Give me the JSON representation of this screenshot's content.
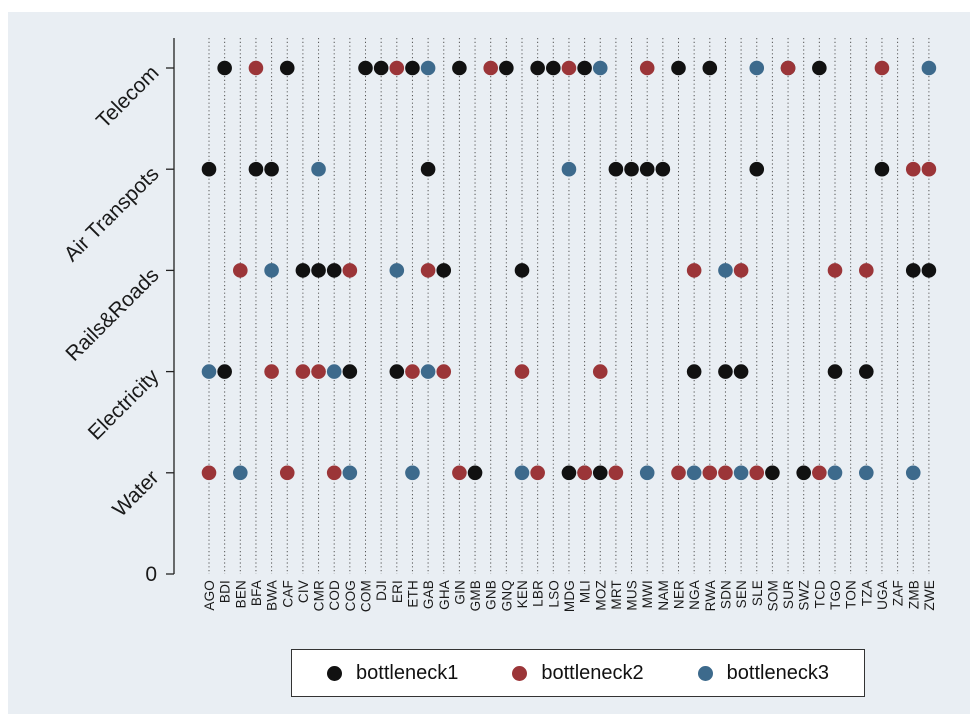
{
  "chart_data": {
    "type": "scatter",
    "title": "",
    "xlabel": "",
    "ylabel": "",
    "y_zero_label": "0",
    "y_categories": [
      "Water",
      "Electricity",
      "Rails&Roads",
      "Air Transpots",
      "Telecom"
    ],
    "x_categories": [
      "AGO",
      "BDI",
      "BEN",
      "BFA",
      "BWA",
      "CAF",
      "CIV",
      "CMR",
      "COD",
      "COG",
      "COM",
      "DJI",
      "ERI",
      "ETH",
      "GAB",
      "GHA",
      "GIN",
      "GMB",
      "GNB",
      "GNQ",
      "KEN",
      "LBR",
      "LSO",
      "MDG",
      "MLI",
      "MOZ",
      "MRT",
      "MUS",
      "MWI",
      "NAM",
      "NER",
      "NGA",
      "RWA",
      "SDN",
      "SEN",
      "SLE",
      "SOM",
      "SUR",
      "SWZ",
      "TCD",
      "TGO",
      "TON",
      "TZA",
      "UGA",
      "ZAF",
      "ZMB",
      "ZWE"
    ],
    "grid": "vertical dotted lines",
    "legend_position": "bottom",
    "series": [
      {
        "name": "bottleneck1",
        "color": "#111111",
        "points": [
          [
            "BDI",
            "Telecom"
          ],
          [
            "CAF",
            "Telecom"
          ],
          [
            "COM",
            "Telecom"
          ],
          [
            "DJI",
            "Telecom"
          ],
          [
            "ETH",
            "Telecom"
          ],
          [
            "GIN",
            "Telecom"
          ],
          [
            "GNQ",
            "Telecom"
          ],
          [
            "LBR",
            "Telecom"
          ],
          [
            "LSO",
            "Telecom"
          ],
          [
            "MLI",
            "Telecom"
          ],
          [
            "NER",
            "Telecom"
          ],
          [
            "RWA",
            "Telecom"
          ],
          [
            "SUR",
            "Telecom"
          ],
          [
            "TCD",
            "Telecom"
          ],
          [
            "AGO",
            "Air Transpots"
          ],
          [
            "BFA",
            "Air Transpots"
          ],
          [
            "BWA",
            "Air Transpots"
          ],
          [
            "GAB",
            "Air Transpots"
          ],
          [
            "MRT",
            "Air Transpots"
          ],
          [
            "MUS",
            "Air Transpots"
          ],
          [
            "MWI",
            "Air Transpots"
          ],
          [
            "NAM",
            "Air Transpots"
          ],
          [
            "SLE",
            "Air Transpots"
          ],
          [
            "UGA",
            "Air Transpots"
          ],
          [
            "CIV",
            "Rails&Roads"
          ],
          [
            "CMR",
            "Rails&Roads"
          ],
          [
            "COD",
            "Rails&Roads"
          ],
          [
            "GHA",
            "Rails&Roads"
          ],
          [
            "KEN",
            "Rails&Roads"
          ],
          [
            "ZMB",
            "Rails&Roads"
          ],
          [
            "ZWE",
            "Rails&Roads"
          ],
          [
            "BDI",
            "Electricity"
          ],
          [
            "COG",
            "Electricity"
          ],
          [
            "ERI",
            "Electricity"
          ],
          [
            "NGA",
            "Electricity"
          ],
          [
            "SDN",
            "Electricity"
          ],
          [
            "SEN",
            "Electricity"
          ],
          [
            "TGO",
            "Electricity"
          ],
          [
            "TZA",
            "Electricity"
          ],
          [
            "GMB",
            "Water"
          ],
          [
            "MDG",
            "Water"
          ],
          [
            "MLI",
            "Water"
          ],
          [
            "MOZ",
            "Water"
          ],
          [
            "SOM",
            "Water"
          ],
          [
            "SWZ",
            "Water"
          ]
        ]
      },
      {
        "name": "bottleneck2",
        "color": "#9b3538",
        "points": [
          [
            "BFA",
            "Telecom"
          ],
          [
            "ERI",
            "Telecom"
          ],
          [
            "GNB",
            "Telecom"
          ],
          [
            "MDG",
            "Telecom"
          ],
          [
            "MWI",
            "Telecom"
          ],
          [
            "SUR",
            "Telecom"
          ],
          [
            "UGA",
            "Telecom"
          ],
          [
            "ZMB",
            "Air Transpots"
          ],
          [
            "ZWE",
            "Air Transpots"
          ],
          [
            "BEN",
            "Rails&Roads"
          ],
          [
            "COG",
            "Rails&Roads"
          ],
          [
            "GAB",
            "Rails&Roads"
          ],
          [
            "NGA",
            "Rails&Roads"
          ],
          [
            "SEN",
            "Rails&Roads"
          ],
          [
            "TGO",
            "Rails&Roads"
          ],
          [
            "TZA",
            "Rails&Roads"
          ],
          [
            "BWA",
            "Electricity"
          ],
          [
            "CIV",
            "Electricity"
          ],
          [
            "CMR",
            "Electricity"
          ],
          [
            "ETH",
            "Electricity"
          ],
          [
            "GHA",
            "Electricity"
          ],
          [
            "KEN",
            "Electricity"
          ],
          [
            "MOZ",
            "Electricity"
          ],
          [
            "AGO",
            "Water"
          ],
          [
            "CAF",
            "Water"
          ],
          [
            "COD",
            "Water"
          ],
          [
            "GIN",
            "Water"
          ],
          [
            "LBR",
            "Water"
          ],
          [
            "MLI",
            "Water"
          ],
          [
            "MRT",
            "Water"
          ],
          [
            "NER",
            "Water"
          ],
          [
            "RWA",
            "Water"
          ],
          [
            "SDN",
            "Water"
          ],
          [
            "SLE",
            "Water"
          ],
          [
            "TCD",
            "Water"
          ]
        ]
      },
      {
        "name": "bottleneck3",
        "color": "#3d6a8c",
        "points": [
          [
            "GAB",
            "Telecom"
          ],
          [
            "MOZ",
            "Telecom"
          ],
          [
            "SLE",
            "Telecom"
          ],
          [
            "ZWE",
            "Telecom"
          ],
          [
            "CMR",
            "Air Transpots"
          ],
          [
            "MDG",
            "Air Transpots"
          ],
          [
            "BWA",
            "Rails&Roads"
          ],
          [
            "ERI",
            "Rails&Roads"
          ],
          [
            "SDN",
            "Rails&Roads"
          ],
          [
            "AGO",
            "Electricity"
          ],
          [
            "COD",
            "Electricity"
          ],
          [
            "GAB",
            "Electricity"
          ],
          [
            "BEN",
            "Water"
          ],
          [
            "COG",
            "Water"
          ],
          [
            "ETH",
            "Water"
          ],
          [
            "KEN",
            "Water"
          ],
          [
            "MWI",
            "Water"
          ],
          [
            "NGA",
            "Water"
          ],
          [
            "SEN",
            "Water"
          ],
          [
            "TGO",
            "Water"
          ],
          [
            "TZA",
            "Water"
          ],
          [
            "ZMB",
            "Water"
          ]
        ]
      }
    ]
  }
}
